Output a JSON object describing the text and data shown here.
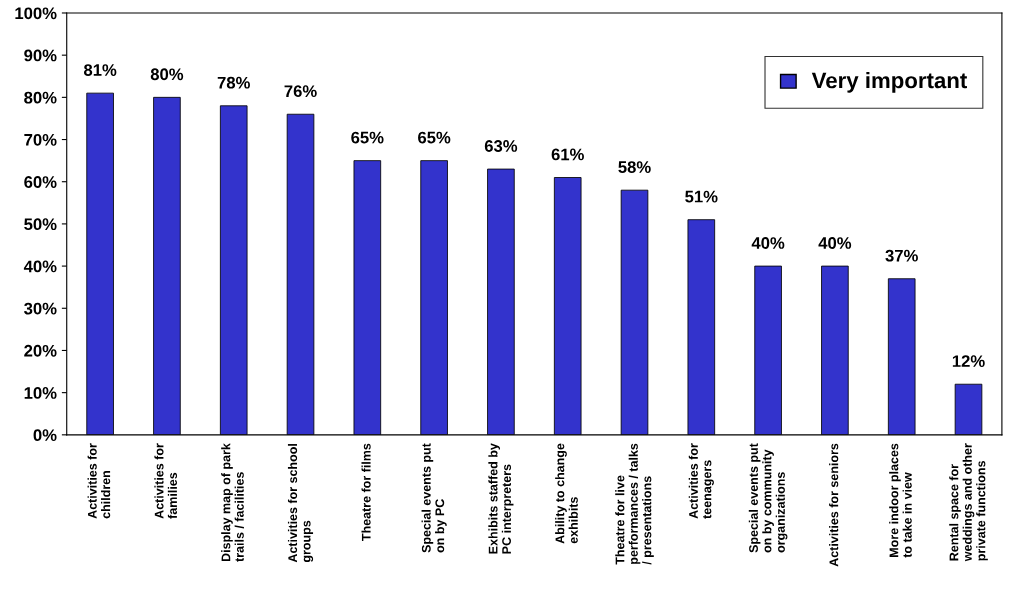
{
  "chart_data": {
    "type": "bar",
    "categories": [
      "Activities for\nchildren",
      "Activities for\nfamilies",
      "Display map of park\ntrails / facilities",
      "Activities for school\ngroups",
      "Theatre for films",
      "Special events put\non by PC",
      "Exhibits staffed by\nPC interpreters",
      "Ability to change\nexhibits",
      "Theatre for live\nperformances / talks\n/ presentations",
      "Activities for\nteenagers",
      "Special events put\non by community\norganizations",
      "Activities for seniors",
      "More indoor places\nto take in view",
      "Rental space for\nweddings and other\nprivate functions"
    ],
    "series": [
      {
        "name": "Very important",
        "color": "#3333cc",
        "values": [
          81,
          80,
          78,
          76,
          65,
          65,
          63,
          61,
          58,
          51,
          40,
          40,
          37,
          12
        ],
        "value_labels": [
          "81%",
          "80%",
          "78%",
          "76%",
          "65%",
          "65%",
          "63%",
          "61%",
          "58%",
          "51%",
          "40%",
          "40%",
          "37%",
          "12%"
        ]
      }
    ],
    "ylim": [
      0,
      100
    ],
    "yticks": [
      {
        "value": 0,
        "label": "0%"
      },
      {
        "value": 10,
        "label": "10%"
      },
      {
        "value": 20,
        "label": "20%"
      },
      {
        "value": 30,
        "label": "30%"
      },
      {
        "value": 40,
        "label": "40%"
      },
      {
        "value": 50,
        "label": "50%"
      },
      {
        "value": 60,
        "label": "60%"
      },
      {
        "value": 70,
        "label": "70%"
      },
      {
        "value": 80,
        "label": "80%"
      },
      {
        "value": 90,
        "label": "90%"
      },
      {
        "value": 100,
        "label": "100%"
      }
    ],
    "grid": false,
    "legend": "top right"
  }
}
